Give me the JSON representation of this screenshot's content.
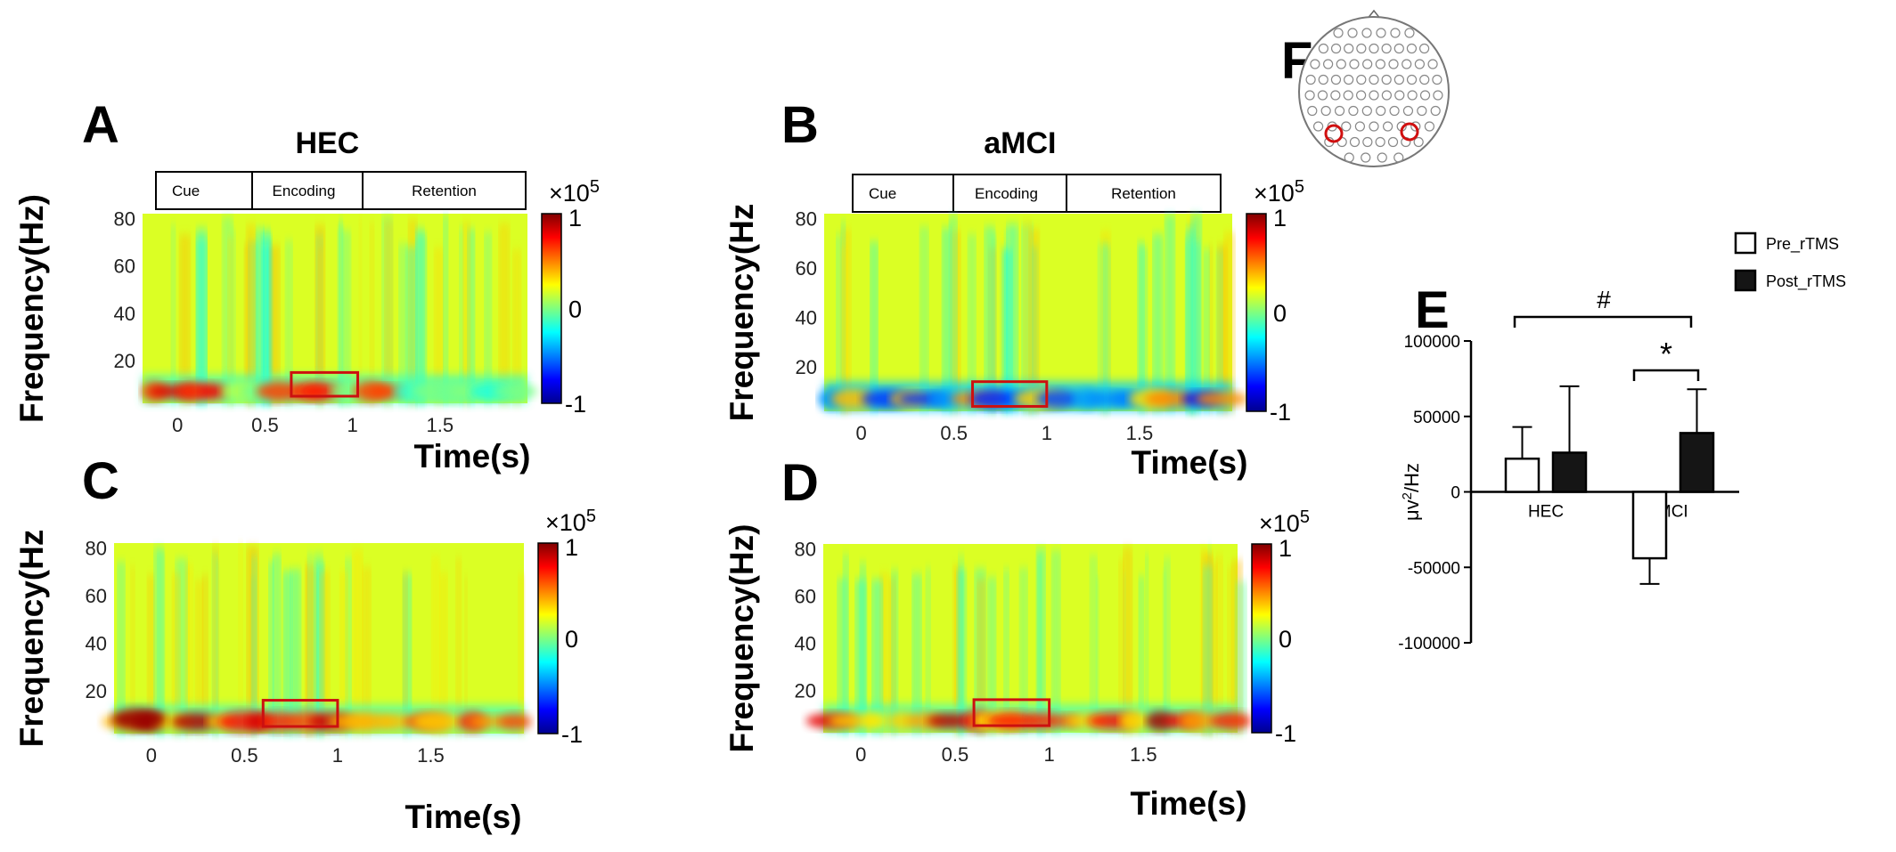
{
  "chart_data": [
    {
      "type": "heatmap",
      "panel": "A",
      "title": "HEC",
      "xlabel": "Time(s)",
      "ylabel": "Frequency(Hz)",
      "xticks": [
        "0",
        "0.5",
        "1",
        "1.5"
      ],
      "yticks": [
        "80",
        "60",
        "40",
        "20"
      ],
      "segments": [
        "Cue",
        "Encoding",
        "Retention"
      ],
      "colorbar": {
        "max": "1",
        "mid": "0",
        "min": "-1",
        "scale": "×10",
        "exp": "5"
      },
      "roi": {
        "time": [
          0.65,
          1.03
        ],
        "freq": [
          5,
          15
        ]
      },
      "xlim": [
        -0.2,
        2.0
      ],
      "ylim": [
        2,
        82
      ]
    },
    {
      "type": "heatmap",
      "panel": "B",
      "title": "aMCI",
      "xlabel": "Time(s)",
      "ylabel": "Frequency(Hz",
      "xticks": [
        "0",
        "0.5",
        "1",
        "1.5"
      ],
      "yticks": [
        "80",
        "60",
        "40",
        "20"
      ],
      "segments": [
        "Cue",
        "Encoding",
        "Retention"
      ],
      "colorbar": {
        "max": "1",
        "mid": "0",
        "min": "-1",
        "scale": "×10",
        "exp": "5"
      },
      "roi": {
        "time": [
          0.6,
          1.0
        ],
        "freq": [
          4,
          14
        ]
      },
      "xlim": [
        -0.2,
        2.0
      ],
      "ylim": [
        2,
        82
      ]
    },
    {
      "type": "heatmap",
      "panel": "C",
      "title": "",
      "xlabel": "Time(s)",
      "ylabel": "Frequency(Hz",
      "xticks": [
        "0",
        "0.5",
        "1",
        "1.5"
      ],
      "yticks": [
        "80",
        "60",
        "40",
        "20"
      ],
      "colorbar": {
        "max": "1",
        "mid": "0",
        "min": "-1",
        "scale": "×10",
        "exp": "5"
      },
      "roi": {
        "time": [
          0.6,
          1.0
        ],
        "freq": [
          5,
          16
        ]
      },
      "xlim": [
        -0.2,
        2.0
      ],
      "ylim": [
        2,
        82
      ]
    },
    {
      "type": "heatmap",
      "panel": "D",
      "title": "",
      "xlabel": "Time(s)",
      "ylabel": "Frequency(Hz)",
      "xticks": [
        "0",
        "0.5",
        "1",
        "1.5"
      ],
      "yticks": [
        "80",
        "60",
        "40",
        "20"
      ],
      "colorbar": {
        "max": "1",
        "mid": "0",
        "min": "-1",
        "scale": "×10",
        "exp": "5"
      },
      "roi": {
        "time": [
          0.6,
          1.0
        ],
        "freq": [
          5,
          16
        ]
      },
      "xlim": [
        -0.2,
        2.0
      ],
      "ylim": [
        2,
        82
      ]
    },
    {
      "type": "bar",
      "panel": "E",
      "ylabel_base": "μv",
      "ylabel_sup": "2",
      "ylabel_tail": "/Hz",
      "categories": [
        "HEC",
        "aMCI"
      ],
      "series": [
        {
          "name": "Pre_rTMS",
          "values": [
            22000,
            -44000
          ],
          "errors": [
            21000,
            17000
          ],
          "color": "#ffffff"
        },
        {
          "name": "Post_rTMS",
          "values": [
            26000,
            39000
          ],
          "errors": [
            44000,
            29000
          ],
          "color": "#151515"
        }
      ],
      "yticks": [
        "100000",
        "50000",
        "0",
        "-50000",
        "-100000"
      ],
      "ylim": [
        -100000,
        100000
      ],
      "annotations": [
        "#",
        "*"
      ],
      "legend": "top-right"
    },
    {
      "type": "diagram",
      "panel": "F",
      "description_label": "electrode layout",
      "highlight_color": "#d01010"
    }
  ]
}
